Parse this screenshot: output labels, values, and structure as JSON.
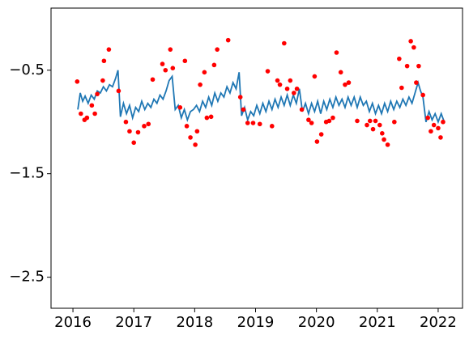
{
  "chart_data": {
    "type": "line",
    "xlim": [
      2015.64,
      2022.4
    ],
    "ylim": [
      -2.8,
      0.1
    ],
    "xticks": [
      2016,
      2017,
      2018,
      2019,
      2020,
      2021,
      2022
    ],
    "yticks": [
      {
        "value": -0.5,
        "label": "−0.5"
      },
      {
        "value": -1.5,
        "label": "−1.5"
      },
      {
        "value": -2.5,
        "label": "−2.5"
      }
    ],
    "series": [
      {
        "type": "line",
        "color": "#1f77b4",
        "x": [
          2016.08,
          2016.12,
          2016.16,
          2016.2,
          2016.25,
          2016.3,
          2016.35,
          2016.4,
          2016.45,
          2016.5,
          2016.55,
          2016.6,
          2016.65,
          2016.7,
          2016.74,
          2016.78,
          2016.83,
          2016.88,
          2016.93,
          2016.98,
          2017.03,
          2017.08,
          2017.13,
          2017.18,
          2017.23,
          2017.28,
          2017.33,
          2017.38,
          2017.43,
          2017.48,
          2017.53,
          2017.58,
          2017.63,
          2017.68,
          2017.73,
          2017.78,
          2017.83,
          2017.88,
          2017.93,
          2017.98,
          2018.03,
          2018.08,
          2018.13,
          2018.18,
          2018.23,
          2018.28,
          2018.33,
          2018.38,
          2018.43,
          2018.48,
          2018.53,
          2018.58,
          2018.63,
          2018.68,
          2018.73,
          2018.77,
          2018.82,
          2018.87,
          2018.92,
          2018.97,
          2019.02,
          2019.07,
          2019.12,
          2019.17,
          2019.22,
          2019.27,
          2019.32,
          2019.37,
          2019.42,
          2019.47,
          2019.52,
          2019.57,
          2019.62,
          2019.67,
          2019.72,
          2019.77,
          2019.82,
          2019.87,
          2019.92,
          2019.97,
          2020.02,
          2020.07,
          2020.12,
          2020.17,
          2020.22,
          2020.27,
          2020.32,
          2020.37,
          2020.42,
          2020.47,
          2020.52,
          2020.57,
          2020.62,
          2020.67,
          2020.72,
          2020.77,
          2020.82,
          2020.87,
          2020.92,
          2020.97,
          2021.02,
          2021.07,
          2021.12,
          2021.17,
          2021.22,
          2021.27,
          2021.32,
          2021.37,
          2021.42,
          2021.47,
          2021.52,
          2021.57,
          2021.62,
          2021.67,
          2021.71,
          2021.75,
          2021.8,
          2021.85,
          2021.9,
          2021.95,
          2022.0,
          2022.05,
          2022.1
        ],
        "values": [
          -0.88,
          -0.72,
          -0.8,
          -0.75,
          -0.82,
          -0.74,
          -0.78,
          -0.7,
          -0.72,
          -0.66,
          -0.7,
          -0.64,
          -0.66,
          -0.58,
          -0.5,
          -0.95,
          -0.82,
          -0.92,
          -0.84,
          -0.96,
          -0.86,
          -0.9,
          -0.8,
          -0.88,
          -0.82,
          -0.86,
          -0.78,
          -0.82,
          -0.74,
          -0.78,
          -0.7,
          -0.6,
          -0.56,
          -0.88,
          -0.84,
          -0.96,
          -0.88,
          -0.98,
          -0.9,
          -0.88,
          -0.84,
          -0.9,
          -0.8,
          -0.86,
          -0.76,
          -0.84,
          -0.72,
          -0.8,
          -0.72,
          -0.76,
          -0.66,
          -0.72,
          -0.62,
          -0.68,
          -0.52,
          -0.94,
          -0.86,
          -0.98,
          -0.9,
          -0.94,
          -0.84,
          -0.92,
          -0.82,
          -0.9,
          -0.8,
          -0.88,
          -0.78,
          -0.86,
          -0.76,
          -0.84,
          -0.74,
          -0.84,
          -0.74,
          -0.82,
          -0.68,
          -0.9,
          -0.82,
          -0.92,
          -0.82,
          -0.9,
          -0.8,
          -0.92,
          -0.8,
          -0.88,
          -0.78,
          -0.86,
          -0.76,
          -0.84,
          -0.78,
          -0.86,
          -0.76,
          -0.84,
          -0.76,
          -0.86,
          -0.76,
          -0.84,
          -0.8,
          -0.9,
          -0.82,
          -0.92,
          -0.84,
          -0.92,
          -0.82,
          -0.9,
          -0.8,
          -0.88,
          -0.8,
          -0.86,
          -0.78,
          -0.84,
          -0.76,
          -0.82,
          -0.72,
          -0.62,
          -0.7,
          -0.76,
          -1.0,
          -0.9,
          -0.98,
          -0.92,
          -1.0,
          -0.92,
          -1.0
        ]
      },
      {
        "type": "scatter",
        "color": "#ff0000",
        "x": [
          2016.07,
          2016.13,
          2016.19,
          2016.23,
          2016.31,
          2016.36,
          2016.4,
          2016.49,
          2016.51,
          2016.59,
          2016.75,
          2016.87,
          2016.93,
          2017.0,
          2017.07,
          2017.17,
          2017.24,
          2017.31,
          2017.47,
          2017.52,
          2017.6,
          2017.64,
          2017.76,
          2017.84,
          2017.87,
          2017.93,
          2018.01,
          2018.04,
          2018.09,
          2018.16,
          2018.2,
          2018.27,
          2018.32,
          2018.37,
          2018.55,
          2018.75,
          2018.8,
          2018.87,
          2018.96,
          2019.07,
          2019.2,
          2019.27,
          2019.36,
          2019.4,
          2019.47,
          2019.52,
          2019.57,
          2019.63,
          2019.68,
          2019.76,
          2019.87,
          2019.92,
          2019.97,
          2020.01,
          2020.08,
          2020.16,
          2020.21,
          2020.27,
          2020.33,
          2020.4,
          2020.47,
          2020.53,
          2020.67,
          2020.83,
          2020.88,
          2020.93,
          2020.97,
          2021.04,
          2021.08,
          2021.11,
          2021.17,
          2021.28,
          2021.36,
          2021.4,
          2021.49,
          2021.55,
          2021.6,
          2021.64,
          2021.68,
          2021.75,
          2021.83,
          2021.88,
          2021.93,
          2022.0,
          2022.04,
          2022.08
        ],
        "values": [
          -0.61,
          -0.92,
          -0.98,
          -0.96,
          -0.84,
          -0.92,
          -0.73,
          -0.6,
          -0.41,
          -0.3,
          -0.7,
          -1.0,
          -1.09,
          -1.2,
          -1.1,
          -1.04,
          -1.02,
          -0.59,
          -0.44,
          -0.5,
          -0.3,
          -0.48,
          -0.86,
          -0.41,
          -1.04,
          -1.15,
          -1.22,
          -1.09,
          -0.64,
          -0.52,
          -0.96,
          -0.95,
          -0.45,
          -0.3,
          -0.21,
          -0.76,
          -0.88,
          -1.01,
          -1.01,
          -1.02,
          -0.51,
          -1.04,
          -0.6,
          -0.64,
          -0.24,
          -0.68,
          -0.6,
          -0.72,
          -0.68,
          -0.88,
          -0.98,
          -1.01,
          -0.56,
          -1.19,
          -1.12,
          -1.0,
          -0.99,
          -0.96,
          -0.33,
          -0.52,
          -0.64,
          -0.62,
          -0.99,
          -1.03,
          -0.99,
          -1.07,
          -0.99,
          -1.03,
          -1.11,
          -1.17,
          -1.22,
          -1.0,
          -0.39,
          -0.67,
          -0.46,
          -0.22,
          -0.28,
          -0.62,
          -0.46,
          -0.74,
          -0.96,
          -1.09,
          -1.03,
          -1.06,
          -1.15,
          -1.0
        ]
      }
    ]
  }
}
